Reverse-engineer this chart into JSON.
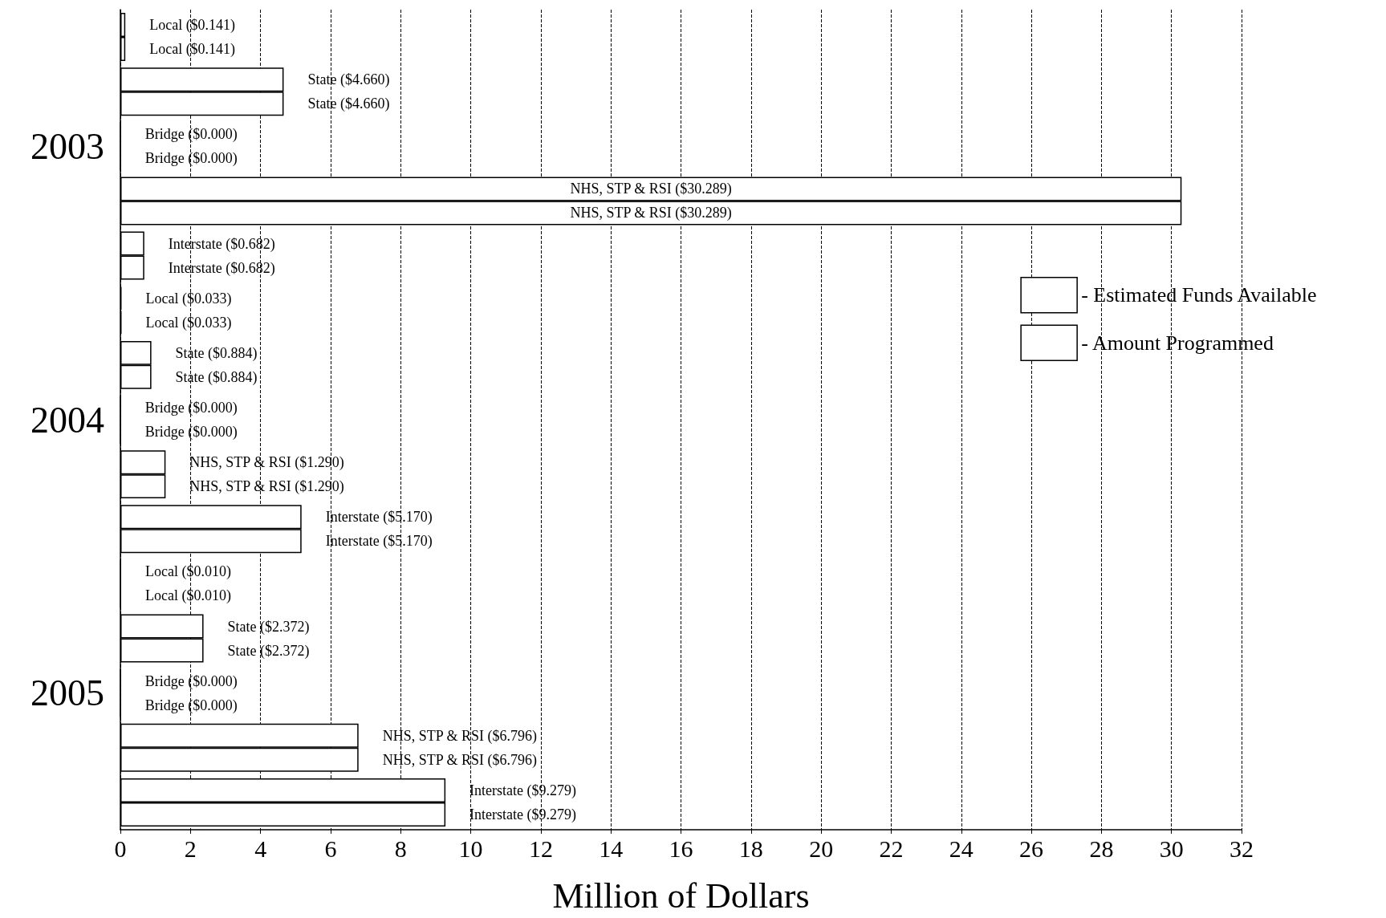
{
  "chart_data": {
    "type": "bar",
    "orientation": "horizontal",
    "xlabel": "Million of Dollars",
    "categories": [
      null,
      null,
      "2003",
      null,
      null,
      null,
      null,
      "2004",
      null,
      null,
      null,
      null,
      "2005",
      null,
      null
    ],
    "series": [
      {
        "name": "- Estimated Funds Available",
        "color": "#ffffff",
        "values": [
          0.141,
          4.66,
          0,
          30.289,
          0.682,
          0.033,
          0.884,
          0,
          1.29,
          5.17,
          0.01,
          2.372,
          0,
          6.796,
          9.279
        ],
        "value_labels": [
          "Local ($0.141)",
          "State ($4.660)",
          "Bridge ($0.000)",
          "NHS, STP & RSI ($30.289)",
          "Interstate ($0.682)",
          "Local ($0.033)",
          "State ($0.884)",
          "Bridge ($0.000)",
          "NHS, STP & RSI ($1.290)",
          "Interstate ($5.170)",
          "Local ($0.010)",
          "State ($2.372)",
          "Bridge ($0.000)",
          "NHS, STP & RSI ($6.796)",
          "Interstate ($9.279)"
        ]
      },
      {
        "name": "- Amount Programmed",
        "color": "#ffffff",
        "values": [
          0.141,
          4.66,
          0,
          30.289,
          0.682,
          0.033,
          0.884,
          0,
          1.29,
          5.17,
          0.01,
          2.372,
          0,
          6.796,
          9.279
        ],
        "value_labels": [
          "Local ($0.141)",
          "State ($4.660)",
          "Bridge ($0.000)",
          "NHS, STP & RSI ($30.289)",
          "Interstate ($0.682)",
          "Local ($0.033)",
          "State ($0.884)",
          "Bridge ($0.000)",
          "NHS, STP & RSI ($1.290)",
          "Interstate ($5.170)",
          "Local ($0.010)",
          "State ($2.372)",
          "Bridge ($0.000)",
          "NHS, STP & RSI ($6.796)",
          "Interstate ($9.279)"
        ]
      }
    ],
    "xlim": [
      0,
      32
    ],
    "xticks": [
      0,
      2,
      4,
      6,
      8,
      10,
      12,
      14,
      16,
      18,
      20,
      22,
      24,
      26,
      28,
      30,
      32
    ],
    "grid": "x",
    "legend": "top right"
  }
}
